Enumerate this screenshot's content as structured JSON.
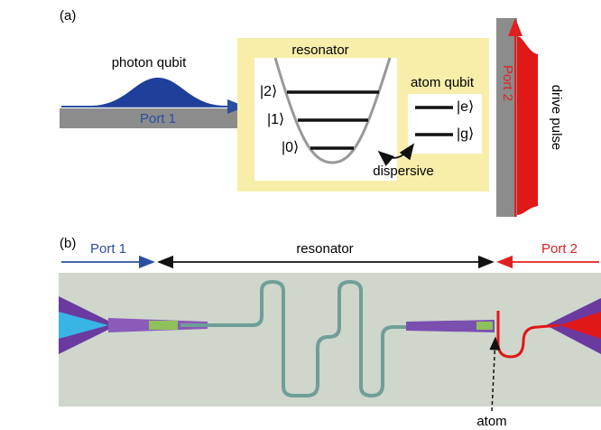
{
  "panel_a": {
    "label": "(a)",
    "photon_qubit": "photon qubit",
    "port1": "Port 1",
    "resonator": "resonator",
    "levels": [
      "|2⟩",
      "|1⟩",
      "|0⟩"
    ],
    "atom_qubit": "atom qubit",
    "atom_levels": [
      "|e⟩",
      "|g⟩"
    ],
    "dispersive": "dispersive",
    "port2": "Port 2",
    "drive_pulse": "drive pulse"
  },
  "panel_b": {
    "label": "(b)",
    "port1": "Port 1",
    "resonator": "resonator",
    "port2": "Port 2",
    "atom": "atom"
  }
}
